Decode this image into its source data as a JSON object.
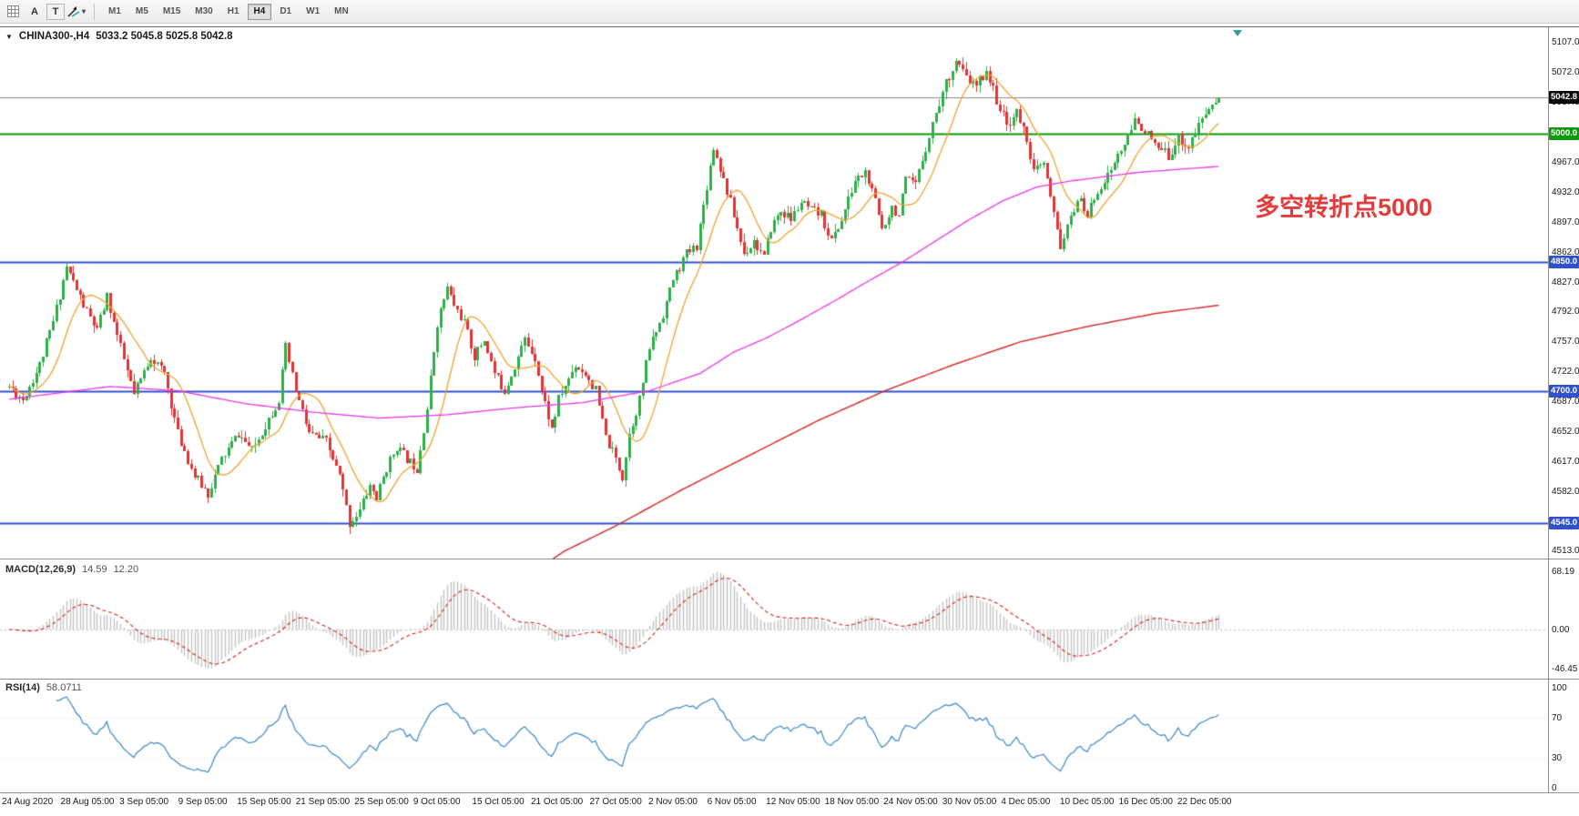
{
  "icons": {
    "chart_menu": "▼",
    "dropdown_caret": "▾"
  },
  "toolbar": {
    "tools": {
      "label_a": "A",
      "label_t": "T"
    },
    "timeframes": [
      "M1",
      "M5",
      "M15",
      "M30",
      "H1",
      "H4",
      "D1",
      "W1",
      "MN"
    ],
    "active_timeframe": "H4"
  },
  "chart": {
    "title": "CHINA300-,H4",
    "ohlc": "5033.2 5045.8 5025.8 5042.8",
    "annotation": {
      "text": "多空转折点5000",
      "color": "#e23c3c"
    },
    "y_ticks": [
      "5107.0",
      "5072.0",
      "5037.0",
      "5002.0",
      "4967.0",
      "4932.0",
      "4897.0",
      "4862.0",
      "4827.0",
      "4792.0",
      "4757.0",
      "4722.0",
      "4687.0",
      "4652.0",
      "4617.0",
      "4582.0",
      "4547.0",
      "4513.0"
    ],
    "price_tags": [
      {
        "label": "5042.8",
        "value": 5042.8,
        "bg": "#0b0b0b"
      },
      {
        "label": "5000.0",
        "value": 5000.0,
        "bg": "#0a9a0a"
      },
      {
        "label": "4850.0",
        "value": 4850.0,
        "bg": "#3050cc"
      },
      {
        "label": "4700.0",
        "value": 4700.0,
        "bg": "#3050cc"
      },
      {
        "label": "4545.0",
        "value": 4545.0,
        "bg": "#3050cc"
      }
    ],
    "hlines": [
      {
        "value": 5042.8,
        "color": "#8a8a8a",
        "width": 1
      },
      {
        "value": 5000,
        "color": "#0a9a0a",
        "width": 2
      },
      {
        "value": 4850,
        "color": "#3050cc",
        "width": 2
      },
      {
        "value": 4700,
        "color": "#3050cc",
        "width": 2
      },
      {
        "value": 4545,
        "color": "#3050cc",
        "width": 2
      }
    ]
  },
  "macd": {
    "label": "MACD(12,26,9)",
    "value1": "14.59",
    "value2": "12.20",
    "y_ticks": [
      "68.19",
      "0.00",
      "-46.45"
    ]
  },
  "rsi": {
    "label": "RSI(14)",
    "value": "58.0711",
    "y_ticks": [
      "100",
      "70",
      "30",
      "0"
    ]
  },
  "time_axis": [
    "24 Aug 2020",
    "28 Aug 05:00",
    "3 Sep 05:00",
    "9 Sep 05:00",
    "15 Sep 05:00",
    "21 Sep 05:00",
    "25 Sep 05:00",
    "9 Oct 05:00",
    "15 Oct 05:00",
    "21 Oct 05:00",
    "27 Oct 05:00",
    "2 Nov 05:00",
    "6 Nov 05:00",
    "12 Nov 05:00",
    "18 Nov 05:00",
    "24 Nov 05:00",
    "30 Nov 05:00",
    "4 Dec 05:00",
    "10 Dec 05:00",
    "16 Dec 05:00",
    "22 Dec 05:00"
  ],
  "chart_data": {
    "type": "candlestick",
    "symbol": "CHINA300-",
    "timeframe": "H4",
    "open_hi_lo_close_current": [
      5033.2,
      5045.8,
      5025.8,
      5042.8
    ],
    "n_candles": 360,
    "last_close": 5042.8,
    "price_range": [
      4513,
      5107
    ],
    "clamp_high": 5104,
    "clamp_low": 4526,
    "close_anchors": [
      [
        0,
        4705
      ],
      [
        4,
        4690
      ],
      [
        9,
        4730
      ],
      [
        13,
        4780
      ],
      [
        17,
        4845
      ],
      [
        22,
        4800
      ],
      [
        26,
        4770
      ],
      [
        29,
        4810
      ],
      [
        33,
        4750
      ],
      [
        37,
        4695
      ],
      [
        42,
        4740
      ],
      [
        46,
        4720
      ],
      [
        50,
        4650
      ],
      [
        55,
        4600
      ],
      [
        59,
        4580
      ],
      [
        63,
        4620
      ],
      [
        68,
        4650
      ],
      [
        72,
        4630
      ],
      [
        76,
        4660
      ],
      [
        80,
        4690
      ],
      [
        82,
        4750
      ],
      [
        85,
        4700
      ],
      [
        89,
        4650
      ],
      [
        94,
        4640
      ],
      [
        98,
        4600
      ],
      [
        101,
        4545
      ],
      [
        104,
        4560
      ],
      [
        107,
        4590
      ],
      [
        109,
        4575
      ],
      [
        112,
        4610
      ],
      [
        115,
        4635
      ],
      [
        118,
        4620
      ],
      [
        121,
        4610
      ],
      [
        124,
        4680
      ],
      [
        127,
        4780
      ],
      [
        130,
        4820
      ],
      [
        132,
        4800
      ],
      [
        135,
        4780
      ],
      [
        138,
        4740
      ],
      [
        141,
        4760
      ],
      [
        144,
        4720
      ],
      [
        147,
        4700
      ],
      [
        150,
        4730
      ],
      [
        153,
        4760
      ],
      [
        156,
        4740
      ],
      [
        158,
        4700
      ],
      [
        161,
        4655
      ],
      [
        163,
        4690
      ],
      [
        168,
        4730
      ],
      [
        171,
        4720
      ],
      [
        174,
        4700
      ],
      [
        177,
        4645
      ],
      [
        180,
        4620
      ],
      [
        182,
        4600
      ],
      [
        184,
        4650
      ],
      [
        187,
        4690
      ],
      [
        190,
        4750
      ],
      [
        194,
        4790
      ],
      [
        197,
        4830
      ],
      [
        201,
        4860
      ],
      [
        204,
        4870
      ],
      [
        207,
        4940
      ],
      [
        209,
        4985
      ],
      [
        211,
        4960
      ],
      [
        214,
        4920
      ],
      [
        218,
        4860
      ],
      [
        221,
        4875
      ],
      [
        224,
        4855
      ],
      [
        226,
        4890
      ],
      [
        229,
        4910
      ],
      [
        232,
        4900
      ],
      [
        235,
        4920
      ],
      [
        238,
        4910
      ],
      [
        241,
        4905
      ],
      [
        244,
        4875
      ],
      [
        247,
        4900
      ],
      [
        251,
        4945
      ],
      [
        254,
        4955
      ],
      [
        257,
        4920
      ],
      [
        259,
        4890
      ],
      [
        262,
        4915
      ],
      [
        264,
        4905
      ],
      [
        266,
        4945
      ],
      [
        269,
        4940
      ],
      [
        272,
        4985
      ],
      [
        275,
        5025
      ],
      [
        278,
        5060
      ],
      [
        281,
        5085
      ],
      [
        284,
        5065
      ],
      [
        287,
        5055
      ],
      [
        290,
        5075
      ],
      [
        293,
        5040
      ],
      [
        296,
        5010
      ],
      [
        299,
        5025
      ],
      [
        302,
        4995
      ],
      [
        304,
        4955
      ],
      [
        307,
        4965
      ],
      [
        310,
        4905
      ],
      [
        312,
        4870
      ],
      [
        315,
        4900
      ],
      [
        317,
        4925
      ],
      [
        320,
        4905
      ],
      [
        323,
        4935
      ],
      [
        326,
        4950
      ],
      [
        329,
        4975
      ],
      [
        332,
        4995
      ],
      [
        334,
        5015
      ],
      [
        337,
        5005
      ],
      [
        340,
        4985
      ],
      [
        344,
        4975
      ],
      [
        347,
        4995
      ],
      [
        350,
        4985
      ],
      [
        353,
        5010
      ],
      [
        356,
        5030
      ],
      [
        359,
        5042.8
      ]
    ],
    "ma_fast_period": 12,
    "magenta_ma_anchors": [
      [
        0,
        4690
      ],
      [
        30,
        4705
      ],
      [
        50,
        4700
      ],
      [
        70,
        4685
      ],
      [
        90,
        4675
      ],
      [
        110,
        4668
      ],
      [
        130,
        4672
      ],
      [
        150,
        4680
      ],
      [
        170,
        4686
      ],
      [
        190,
        4700
      ],
      [
        205,
        4720
      ],
      [
        215,
        4745
      ],
      [
        225,
        4762
      ],
      [
        235,
        4783
      ],
      [
        245,
        4805
      ],
      [
        255,
        4828
      ],
      [
        265,
        4850
      ],
      [
        275,
        4875
      ],
      [
        285,
        4900
      ],
      [
        295,
        4922
      ],
      [
        305,
        4938
      ],
      [
        315,
        4945
      ],
      [
        325,
        4950
      ],
      [
        335,
        4955
      ],
      [
        345,
        4958
      ],
      [
        359,
        4962
      ]
    ],
    "red_ma_anchors": [
      [
        148,
        4468
      ],
      [
        165,
        4513
      ],
      [
        180,
        4542
      ],
      [
        200,
        4585
      ],
      [
        220,
        4625
      ],
      [
        240,
        4665
      ],
      [
        260,
        4700
      ],
      [
        280,
        4730
      ],
      [
        300,
        4757
      ],
      [
        320,
        4775
      ],
      [
        340,
        4790
      ],
      [
        359,
        4800
      ]
    ],
    "noise": {
      "seed": 11,
      "close_amp": 6,
      "wick_amp": 9
    },
    "indicators": {
      "macd": {
        "fast": 12,
        "slow": 26,
        "signal": 9,
        "display_max": 68.19,
        "display_min": -46.45
      },
      "rsi": {
        "period": 14,
        "levels": [
          70,
          30
        ]
      }
    },
    "colors": {
      "up": "#2fae4a",
      "down": "#e03535",
      "ma_fast": "#efa330",
      "ma_mid": "#e838e8",
      "ma_slow": "#d73030",
      "macd_bar": "#c4c4c4",
      "macd_signal": "#d22020",
      "rsi": "#3a87c8"
    }
  }
}
